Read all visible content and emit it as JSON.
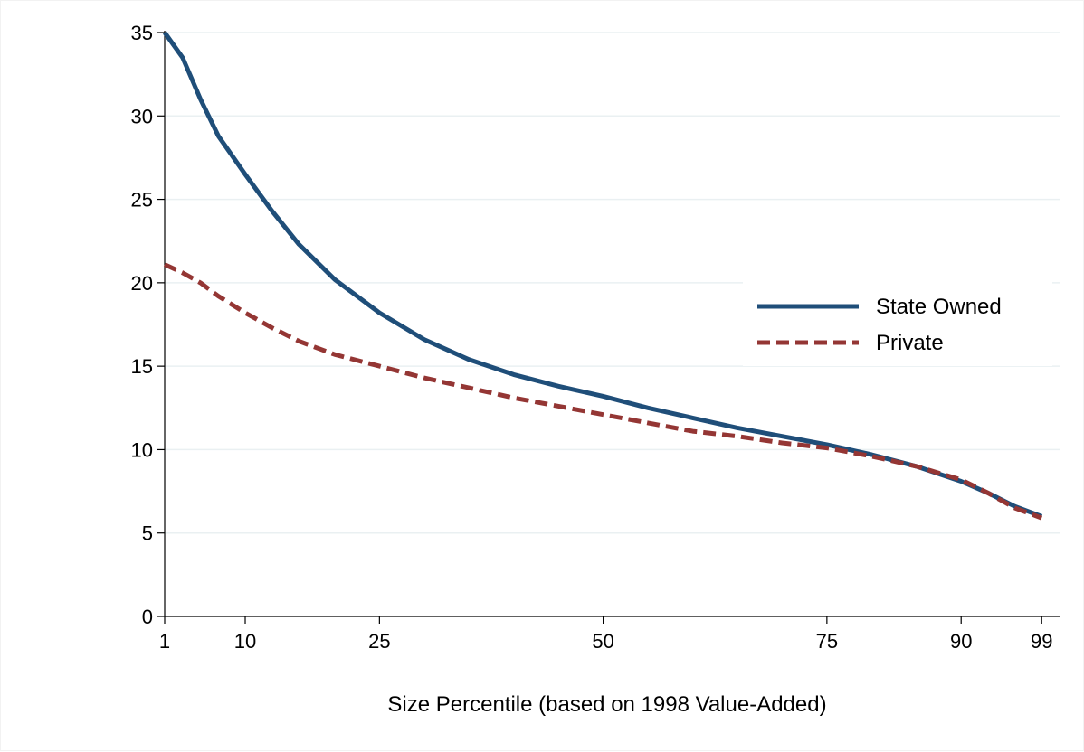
{
  "chart_data": {
    "type": "line",
    "title": "",
    "xlabel": "Size Percentile (based on 1998 Value-Added)",
    "ylabel": "",
    "xlim": [
      1,
      101
    ],
    "ylim": [
      0,
      35
    ],
    "x_ticks": [
      1,
      10,
      25,
      50,
      75,
      90,
      99
    ],
    "y_ticks": [
      0,
      5,
      10,
      15,
      20,
      25,
      30,
      35
    ],
    "grid": "horizontal",
    "legend_position": "right",
    "series": [
      {
        "name": "State Owned",
        "color": "#1f4e79",
        "style": "solid",
        "x": [
          1,
          3,
          5,
          7,
          10,
          13,
          16,
          20,
          25,
          30,
          35,
          40,
          45,
          50,
          55,
          60,
          65,
          70,
          75,
          80,
          85,
          90,
          93,
          96,
          99
        ],
        "y": [
          35,
          33.5,
          31,
          28.8,
          26.5,
          24.3,
          22.3,
          20.2,
          18.2,
          16.6,
          15.4,
          14.5,
          13.8,
          13.2,
          12.5,
          11.9,
          11.3,
          10.8,
          10.3,
          9.7,
          9.0,
          8.1,
          7.4,
          6.6,
          6.0
        ]
      },
      {
        "name": "Private",
        "color": "#943634",
        "style": "dashed",
        "x": [
          1,
          3,
          5,
          7,
          10,
          13,
          16,
          20,
          25,
          30,
          35,
          40,
          45,
          50,
          55,
          60,
          65,
          70,
          75,
          80,
          85,
          90,
          93,
          96,
          99
        ],
        "y": [
          21.1,
          20.6,
          20.0,
          19.2,
          18.2,
          17.3,
          16.5,
          15.7,
          15.0,
          14.3,
          13.7,
          13.1,
          12.6,
          12.1,
          11.6,
          11.1,
          10.8,
          10.4,
          10.1,
          9.6,
          9.0,
          8.2,
          7.4,
          6.5,
          5.9
        ]
      }
    ]
  }
}
